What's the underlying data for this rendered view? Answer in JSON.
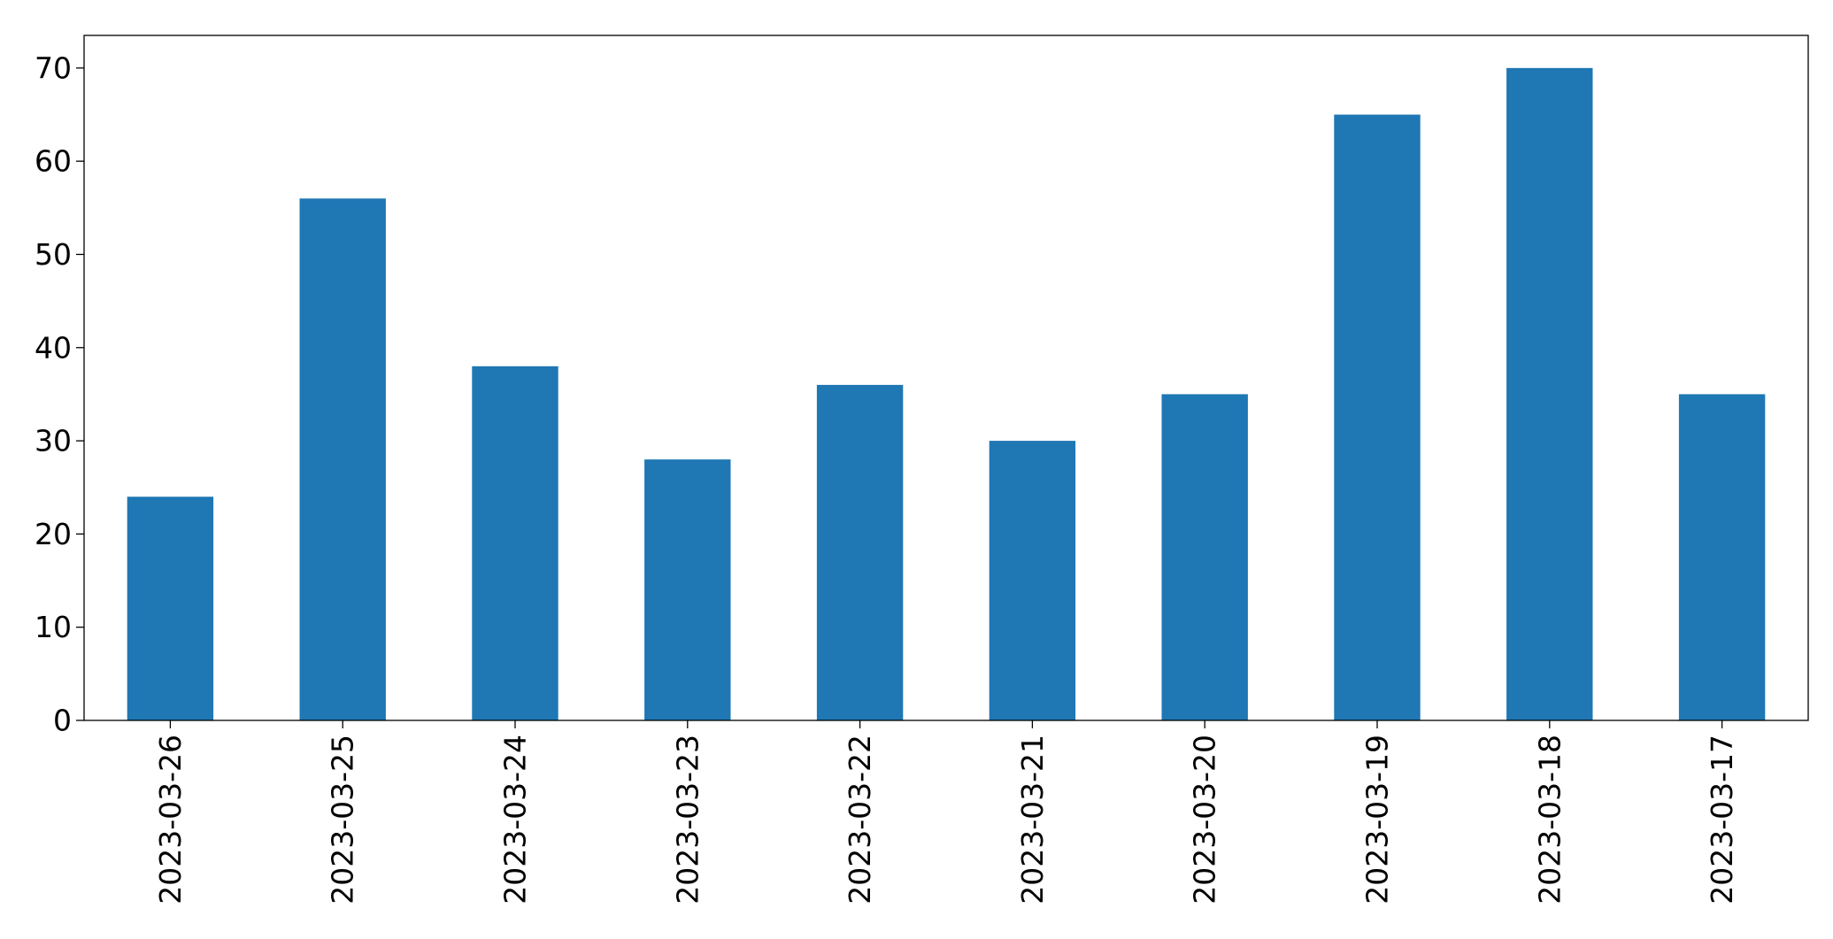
{
  "chart_data": {
    "type": "bar",
    "title": "",
    "xlabel": "",
    "ylabel": "",
    "categories": [
      "2023-03-26",
      "2023-03-25",
      "2023-03-24",
      "2023-03-23",
      "2023-03-22",
      "2023-03-21",
      "2023-03-20",
      "2023-03-19",
      "2023-03-18",
      "2023-03-17"
    ],
    "values": [
      24,
      56,
      38,
      28,
      36,
      30,
      35,
      65,
      70,
      35
    ],
    "ylim": [
      0,
      73.5
    ],
    "yticks": [
      0,
      10,
      20,
      30,
      40,
      50,
      60,
      70
    ],
    "bar_color": "#1f77b4",
    "grid": false,
    "legend": "none"
  }
}
